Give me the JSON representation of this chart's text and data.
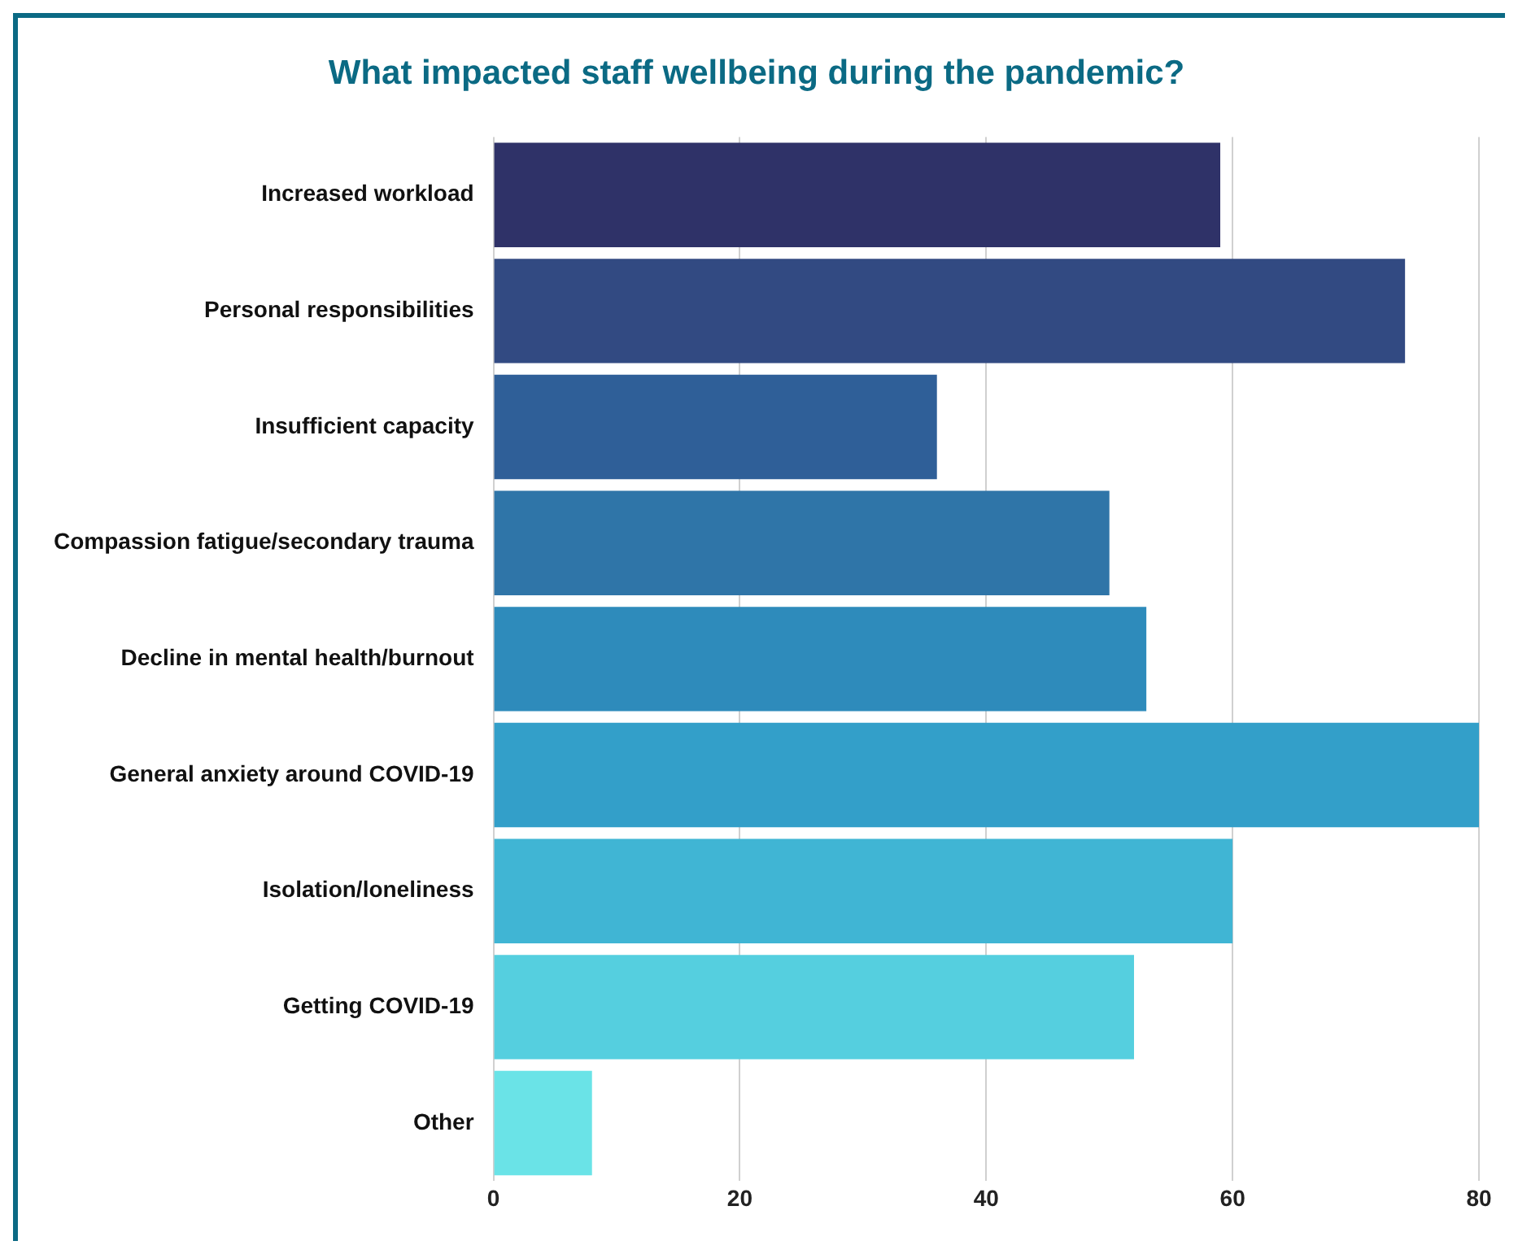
{
  "chart_data": {
    "type": "bar",
    "orientation": "horizontal",
    "title": "What impacted staff wellbeing during the pandemic?",
    "categories": [
      "Increased workload",
      "Personal responsibilities",
      "Insufficient capacity",
      "Compassion fatigue/secondary trauma",
      "Decline in mental health/burnout",
      "General anxiety around COVID-19",
      "Isolation/loneliness",
      "Getting COVID-19",
      "Other"
    ],
    "values": [
      59,
      74,
      36,
      50,
      53,
      80,
      60,
      52,
      8
    ],
    "colors": [
      "#2f3268",
      "#324a82",
      "#2f5f98",
      "#2f75a8",
      "#2e8bbb",
      "#339fc9",
      "#40b5d4",
      "#55cfdf",
      "#6ae3e7"
    ],
    "xlim": [
      0,
      80
    ],
    "xticks": [
      0,
      20,
      40,
      60,
      80
    ],
    "grid": "x",
    "legend": false
  }
}
